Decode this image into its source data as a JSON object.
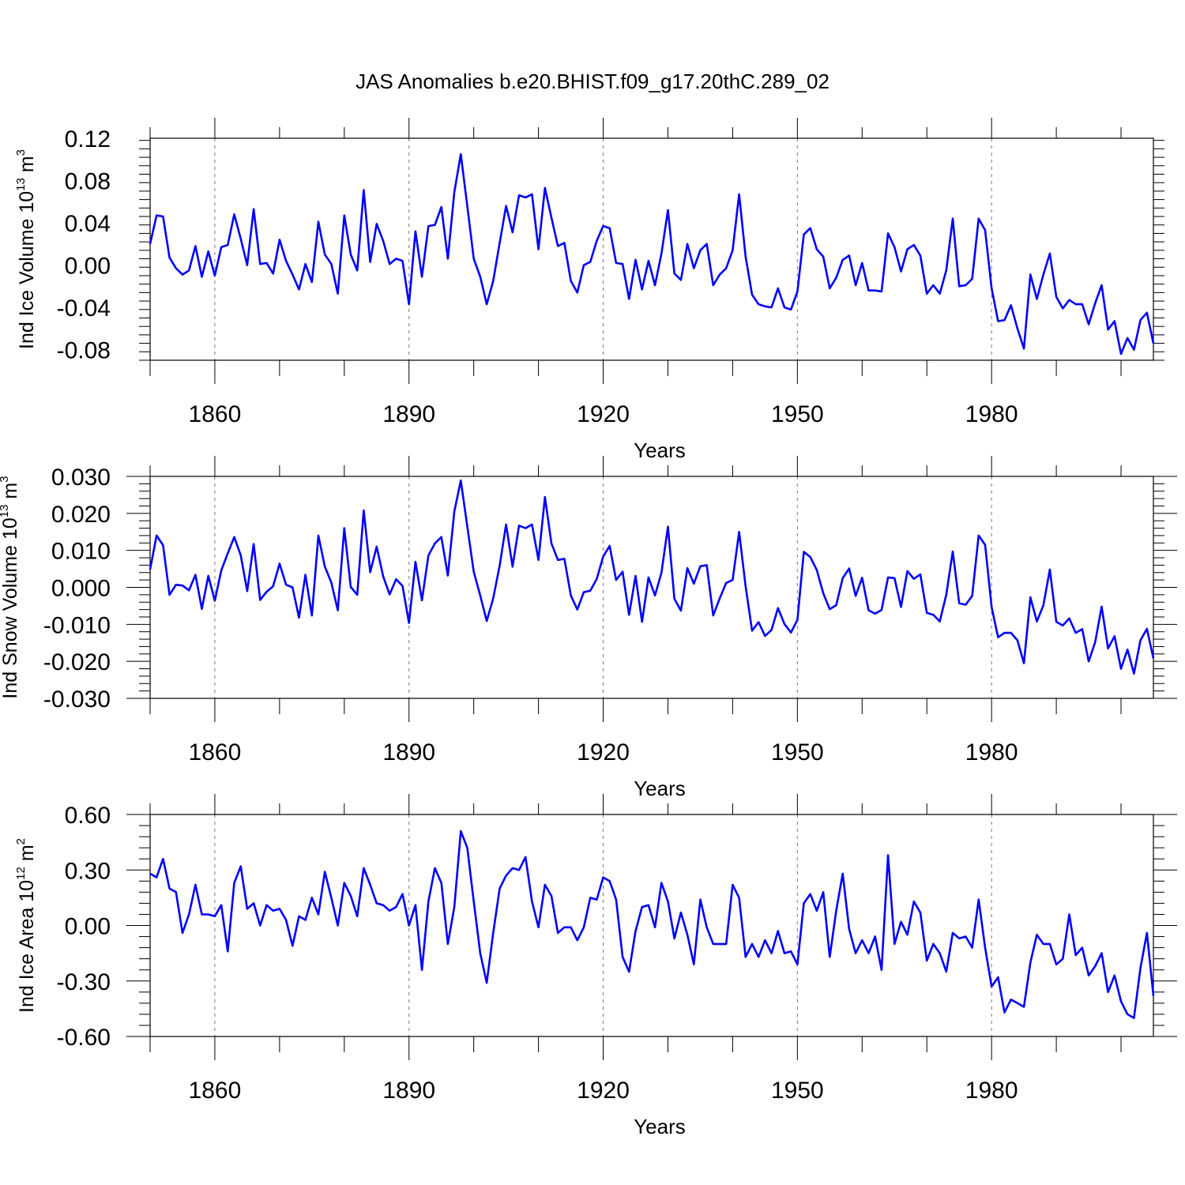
{
  "figure_title": "JAS Anomalies b.e20.BHIST.f09_g17.20thC.289_02",
  "chart_data": [
    {
      "type": "line",
      "title": "JAS Anomalies b.e20.BHIST.f09_g17.20thC.289_02",
      "ylabel": {
        "main": "Ind Ice Volume 10",
        "sup": "13",
        "unit": " m",
        "unit_sup": "3"
      },
      "xlabel": "Years",
      "xlim": [
        1850,
        2005
      ],
      "ylim": [
        -0.09,
        0.12
      ],
      "y_ticks": [
        -0.08,
        -0.04,
        0.0,
        0.04,
        0.08,
        0.12
      ],
      "y_tick_labels": [
        "-0.08",
        "-0.04",
        "0.00",
        "0.04",
        "0.08",
        "0.12"
      ],
      "x_ticks": [
        1860,
        1890,
        1920,
        1950,
        1980
      ],
      "x_tick_labels": [
        "1860",
        "1890",
        "1920",
        "1950",
        "1980"
      ],
      "grid": "dashed vertical lines at major x ticks",
      "series": [
        {
          "name": "Ind Ice Volume",
          "color": "#0000ff",
          "x_start": 1850,
          "values": [
            0.02,
            0.047,
            0.046,
            0.007,
            -0.003,
            -0.009,
            -0.005,
            0.018,
            -0.011,
            0.013,
            -0.01,
            0.017,
            0.019,
            0.048,
            0.025,
            0.0,
            0.053,
            0.001,
            0.002,
            -0.008,
            0.024,
            0.004,
            -0.009,
            -0.023,
            0.001,
            -0.016,
            0.041,
            0.01,
            0.001,
            -0.027,
            0.047,
            0.01,
            -0.005,
            0.071,
            0.003,
            0.039,
            0.023,
            0.001,
            0.006,
            0.004,
            -0.037,
            0.032,
            -0.011,
            0.037,
            0.038,
            0.055,
            0.006,
            0.069,
            0.105,
            0.056,
            0.006,
            -0.011,
            -0.037,
            -0.015,
            0.021,
            0.056,
            0.031,
            0.066,
            0.064,
            0.067,
            0.015,
            0.073,
            0.045,
            0.018,
            0.021,
            -0.015,
            -0.026,
            0.0,
            0.003,
            0.023,
            0.037,
            0.035,
            0.002,
            0.001,
            -0.032,
            0.005,
            -0.023,
            0.004,
            -0.019,
            0.011,
            0.052,
            -0.008,
            -0.014,
            0.02,
            -0.003,
            0.014,
            0.02,
            -0.019,
            -0.009,
            -0.003,
            0.014,
            0.067,
            0.008,
            -0.028,
            -0.037,
            -0.039,
            -0.04,
            -0.022,
            -0.04,
            -0.042,
            -0.025,
            0.029,
            0.035,
            0.015,
            0.008,
            -0.022,
            -0.012,
            0.005,
            0.009,
            -0.019,
            0.002,
            -0.024,
            -0.024,
            -0.025,
            0.03,
            0.017,
            -0.006,
            0.015,
            0.019,
            0.009,
            -0.027,
            -0.019,
            -0.027,
            -0.005,
            0.044,
            -0.02,
            -0.019,
            -0.013,
            0.044,
            0.033,
            -0.022,
            -0.053,
            -0.052,
            -0.038,
            -0.06,
            -0.079,
            -0.009,
            -0.032,
            -0.009,
            0.011,
            -0.03,
            -0.041,
            -0.033,
            -0.037,
            -0.037,
            -0.056,
            -0.036,
            -0.019,
            -0.061,
            -0.053,
            -0.084,
            -0.069,
            -0.08,
            -0.052,
            -0.045,
            -0.074
          ]
        }
      ]
    },
    {
      "type": "line",
      "ylabel": {
        "main": "Ind Snow Volume 10",
        "sup": "13",
        "unit": " m",
        "unit_sup": "3"
      },
      "xlabel": "Years",
      "xlim": [
        1850,
        2005
      ],
      "ylim": [
        -0.03,
        0.03
      ],
      "y_ticks": [
        -0.03,
        -0.02,
        -0.01,
        0.0,
        0.01,
        0.02,
        0.03
      ],
      "y_tick_labels": [
        "-0.030",
        "-0.020",
        "-0.010",
        "0.000",
        "0.010",
        "0.020",
        "0.030"
      ],
      "x_ticks": [
        1860,
        1890,
        1920,
        1950,
        1980
      ],
      "x_tick_labels": [
        "1860",
        "1890",
        "1920",
        "1950",
        "1980"
      ],
      "grid": "dashed vertical lines at major x ticks",
      "series": [
        {
          "name": "Ind Snow Volume",
          "color": "#0000ff",
          "x_start": 1850,
          "values": [
            0.0048,
            0.014,
            0.0114,
            -0.002,
            0.0007,
            0.0005,
            -0.0008,
            0.0034,
            -0.0058,
            0.0031,
            -0.0036,
            0.0046,
            0.0092,
            0.0136,
            0.0087,
            -0.001,
            0.0117,
            -0.0034,
            -0.0012,
            0.0003,
            0.0064,
            0.0007,
            0.0,
            -0.0082,
            0.0034,
            -0.0076,
            0.014,
            0.0056,
            0.0013,
            -0.0062,
            0.016,
            0.0001,
            -0.002,
            0.0208,
            0.0041,
            0.011,
            0.003,
            -0.0019,
            0.0022,
            0.0004,
            -0.0096,
            0.0069,
            -0.0035,
            0.0086,
            0.0119,
            0.0136,
            0.0032,
            0.0205,
            0.0289,
            0.0165,
            0.0042,
            -0.0022,
            -0.0091,
            -0.003,
            0.0059,
            0.017,
            0.0056,
            0.0167,
            0.016,
            0.017,
            0.0074,
            0.0244,
            0.0119,
            0.0074,
            0.0077,
            -0.0022,
            -0.006,
            -0.0013,
            -0.0009,
            0.0023,
            0.0083,
            0.0112,
            0.002,
            0.0042,
            -0.0074,
            0.0031,
            -0.0093,
            0.0027,
            -0.0022,
            0.004,
            0.0164,
            -0.0031,
            -0.0063,
            0.0052,
            0.001,
            0.0057,
            0.006,
            -0.0076,
            -0.003,
            0.0012,
            0.002,
            0.015,
            0.0003,
            -0.0117,
            -0.0094,
            -0.0131,
            -0.0115,
            -0.0056,
            -0.0099,
            -0.0122,
            -0.0088,
            0.0096,
            0.0082,
            0.0047,
            -0.0016,
            -0.0059,
            -0.0048,
            0.0025,
            0.0051,
            -0.0023,
            0.0026,
            -0.0062,
            -0.0071,
            -0.0061,
            0.0027,
            0.0025,
            -0.0053,
            0.0044,
            0.0023,
            0.0035,
            -0.0069,
            -0.0074,
            -0.0092,
            -0.002,
            0.0097,
            -0.0043,
            -0.0047,
            -0.0023,
            0.014,
            0.0115,
            -0.0053,
            -0.0135,
            -0.0123,
            -0.0123,
            -0.0143,
            -0.0205,
            -0.0027,
            -0.0092,
            -0.0049,
            0.0048,
            -0.0093,
            -0.0103,
            -0.0084,
            -0.0123,
            -0.0113,
            -0.02,
            -0.0148,
            -0.0052,
            -0.0165,
            -0.0132,
            -0.022,
            -0.0168,
            -0.0233,
            -0.0143,
            -0.0112,
            -0.0192
          ]
        }
      ]
    },
    {
      "type": "line",
      "ylabel": {
        "main": "Ind Ice Area 10",
        "sup": "12",
        "unit": " m",
        "unit_sup": "2"
      },
      "xlabel": "Years",
      "xlim": [
        1850,
        2005
      ],
      "ylim": [
        -0.6,
        0.6
      ],
      "y_ticks": [
        -0.6,
        -0.3,
        0.0,
        0.3,
        0.6
      ],
      "y_tick_labels": [
        "-0.60",
        "-0.30",
        "0.00",
        "0.30",
        "0.60"
      ],
      "x_ticks": [
        1860,
        1890,
        1920,
        1950,
        1980
      ],
      "x_tick_labels": [
        "1860",
        "1890",
        "1920",
        "1950",
        "1980"
      ],
      "grid": "dashed vertical lines at major x ticks",
      "series": [
        {
          "name": "Ind Ice Area",
          "color": "#0000ff",
          "x_start": 1850,
          "values": [
            0.28,
            0.26,
            0.36,
            0.2,
            0.18,
            -0.04,
            0.06,
            0.22,
            0.06,
            0.06,
            0.05,
            0.11,
            -0.14,
            0.23,
            0.32,
            0.09,
            0.12,
            0.0,
            0.11,
            0.08,
            0.09,
            0.03,
            -0.11,
            0.05,
            0.03,
            0.15,
            0.06,
            0.29,
            0.15,
            0.0,
            0.23,
            0.16,
            0.05,
            0.31,
            0.22,
            0.12,
            0.11,
            0.08,
            0.1,
            0.17,
            0.0,
            0.11,
            -0.24,
            0.13,
            0.31,
            0.23,
            -0.1,
            0.1,
            0.51,
            0.42,
            0.13,
            -0.15,
            -0.31,
            -0.04,
            0.2,
            0.27,
            0.31,
            0.3,
            0.37,
            0.13,
            -0.01,
            0.22,
            0.16,
            -0.04,
            -0.01,
            -0.01,
            -0.08,
            -0.01,
            0.15,
            0.14,
            0.26,
            0.24,
            0.14,
            -0.17,
            -0.25,
            -0.03,
            0.1,
            0.11,
            -0.01,
            0.23,
            0.13,
            -0.07,
            0.07,
            -0.05,
            -0.21,
            0.14,
            -0.01,
            -0.1,
            -0.1,
            -0.1,
            0.22,
            0.15,
            -0.17,
            -0.1,
            -0.17,
            -0.08,
            -0.15,
            -0.03,
            -0.15,
            -0.14,
            -0.21,
            0.12,
            0.17,
            0.08,
            0.18,
            -0.17,
            0.08,
            0.28,
            -0.02,
            -0.15,
            -0.08,
            -0.15,
            -0.06,
            -0.24,
            0.38,
            -0.1,
            0.02,
            -0.05,
            0.13,
            0.07,
            -0.19,
            -0.1,
            -0.15,
            -0.25,
            -0.04,
            -0.07,
            -0.06,
            -0.12,
            0.14,
            -0.12,
            -0.33,
            -0.28,
            -0.47,
            -0.4,
            -0.42,
            -0.44,
            -0.2,
            -0.05,
            -0.1,
            -0.1,
            -0.21,
            -0.18,
            0.06,
            -0.16,
            -0.12,
            -0.27,
            -0.22,
            -0.15,
            -0.36,
            -0.27,
            -0.41,
            -0.48,
            -0.5,
            -0.23,
            -0.04,
            -0.38
          ]
        }
      ]
    }
  ]
}
